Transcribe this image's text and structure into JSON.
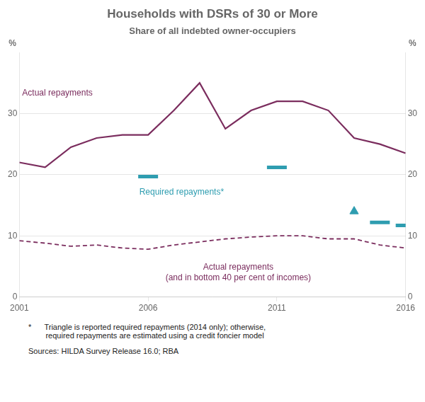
{
  "chart_data": {
    "type": "line",
    "title": "Households with DSRs of 30 or More",
    "subtitle": "Share of all indebted owner-occupiers",
    "footnote": "*      Triangle is reported required repayments (2014 only); otherwise,\n        required repayments are estimated using a credit foncier model",
    "sources": "Sources: HILDA Survey Release 16.0; RBA",
    "ylabel": "%",
    "y2label": "%",
    "x": [
      2001,
      2002,
      2003,
      2004,
      2005,
      2006,
      2007,
      2008,
      2009,
      2010,
      2011,
      2012,
      2013,
      2014,
      2015,
      2016
    ],
    "xlim": [
      2001,
      2016
    ],
    "xticks": [
      2001,
      2006,
      2011,
      2016
    ],
    "ylim": [
      0,
      40
    ],
    "yticks": [
      0,
      10,
      20,
      30
    ],
    "y2lim": [
      0,
      40
    ],
    "y2ticks": [
      0,
      10,
      20,
      30
    ],
    "grid": true,
    "series": [
      {
        "color": "#7B2D5E",
        "line_style": "solid",
        "values": [
          22.0,
          21.2,
          24.5,
          26.0,
          26.5,
          26.5,
          30.5,
          35.0,
          27.5,
          30.5,
          32.0,
          32.0,
          30.5,
          26.0,
          25.0,
          23.5
        ]
      },
      {
        "color": "#7B2D5E",
        "line_style": "dashed",
        "values": [
          9.2,
          8.8,
          8.3,
          8.5,
          8.0,
          7.8,
          8.5,
          9.0,
          9.5,
          9.8,
          10.0,
          10.0,
          9.5,
          9.5,
          8.5,
          8.0
        ]
      },
      {
        "type": "scatter",
        "marker": "hline",
        "color": "#2E9DB0",
        "values": [
          null,
          null,
          null,
          null,
          null,
          19.7,
          null,
          null,
          null,
          null,
          21.2,
          null,
          null,
          null,
          12.2,
          11.7
        ]
      },
      {
        "type": "scatter",
        "marker": "triangle",
        "color": "#2E9DB0",
        "values": [
          null,
          null,
          null,
          null,
          null,
          null,
          null,
          null,
          null,
          null,
          null,
          null,
          null,
          14.0,
          null,
          null
        ]
      }
    ],
    "annotations": [
      {
        "text": "Actual repayments",
        "x": 2001.8,
        "y": 34.0,
        "color": "#7B2D5E"
      },
      {
        "text": "Required repayments*",
        "x": 2007.3,
        "y": 17.8,
        "color": "#2E9DB0"
      },
      {
        "text": "Actual repayments\n(and in bottom 40 per cent of incomes)",
        "x": 2009.5,
        "y": 5.5,
        "color": "#7B2D5E"
      }
    ]
  }
}
